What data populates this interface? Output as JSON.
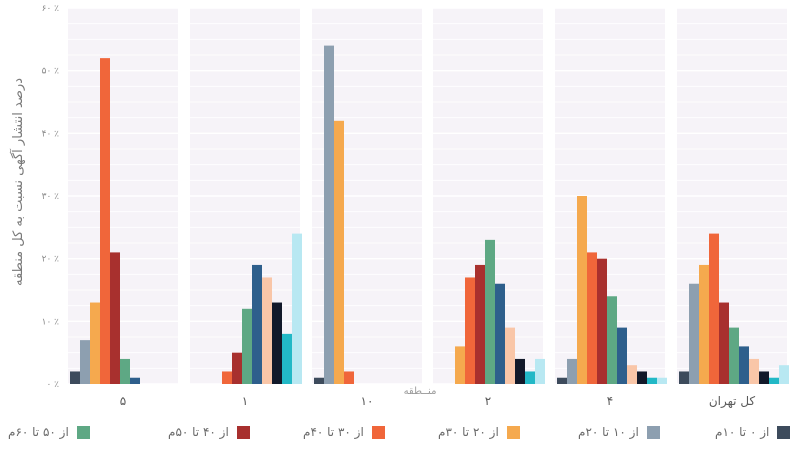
{
  "chart_data": {
    "type": "bar",
    "title": "",
    "xlabel": "منــطقه",
    "ylabel": "درصد انتشار آگهی نسبت به کل منطقه",
    "ylim": [
      0,
      60
    ],
    "yticks": [
      0,
      10,
      20,
      30,
      40,
      50,
      60
    ],
    "ytick_labels": [
      "۰ ٪",
      "۱۰ ٪",
      "۲۰ ٪",
      "۳۰ ٪",
      "۴۰ ٪",
      "۵۰ ٪",
      "۶۰ ٪"
    ],
    "categories": [
      "۵",
      "۱",
      "۱۰",
      "۲",
      "۴",
      "کل تهران"
    ],
    "grid": true,
    "legend_position": "bottom",
    "series": [
      {
        "name": "از ۰ تا ۱۰م",
        "color": "#3d4b5c",
        "values": [
          2,
          0,
          1,
          0,
          1,
          2
        ]
      },
      {
        "name": "از ۱۰ تا ۲۰م",
        "color": "#8d9fb0",
        "values": [
          7,
          0,
          54,
          0,
          4,
          16
        ]
      },
      {
        "name": "از ۲۰ تا ۳۰م",
        "color": "#f5a94e",
        "values": [
          13,
          0,
          42,
          6,
          30,
          19
        ]
      },
      {
        "name": "از ۳۰ تا ۴۰م",
        "color": "#f0663a",
        "values": [
          52,
          2,
          2,
          17,
          21,
          24
        ]
      },
      {
        "name": "از ۴۰ تا ۵۰م",
        "color": "#a8302e",
        "values": [
          21,
          5,
          0,
          19,
          20,
          13
        ]
      },
      {
        "name": "از ۵۰ تا ۶۰م",
        "color": "#5ea884",
        "values": [
          4,
          12,
          0,
          23,
          14,
          9
        ]
      },
      {
        "name": "",
        "color": "#2e5f8c",
        "values": [
          1,
          19,
          0,
          16,
          9,
          6
        ]
      },
      {
        "name": "",
        "color": "#f9c6a8",
        "values": [
          0,
          17,
          0,
          9,
          3,
          4
        ]
      },
      {
        "name": "",
        "color": "#12192a",
        "values": [
          0,
          13,
          0,
          4,
          2,
          2
        ]
      },
      {
        "name": "",
        "color": "#22b8c6",
        "values": [
          0,
          8,
          0,
          2,
          1,
          1
        ]
      },
      {
        "name": "",
        "color": "#b8e8f2",
        "values": [
          0,
          24,
          0,
          4,
          1,
          3
        ]
      }
    ]
  }
}
